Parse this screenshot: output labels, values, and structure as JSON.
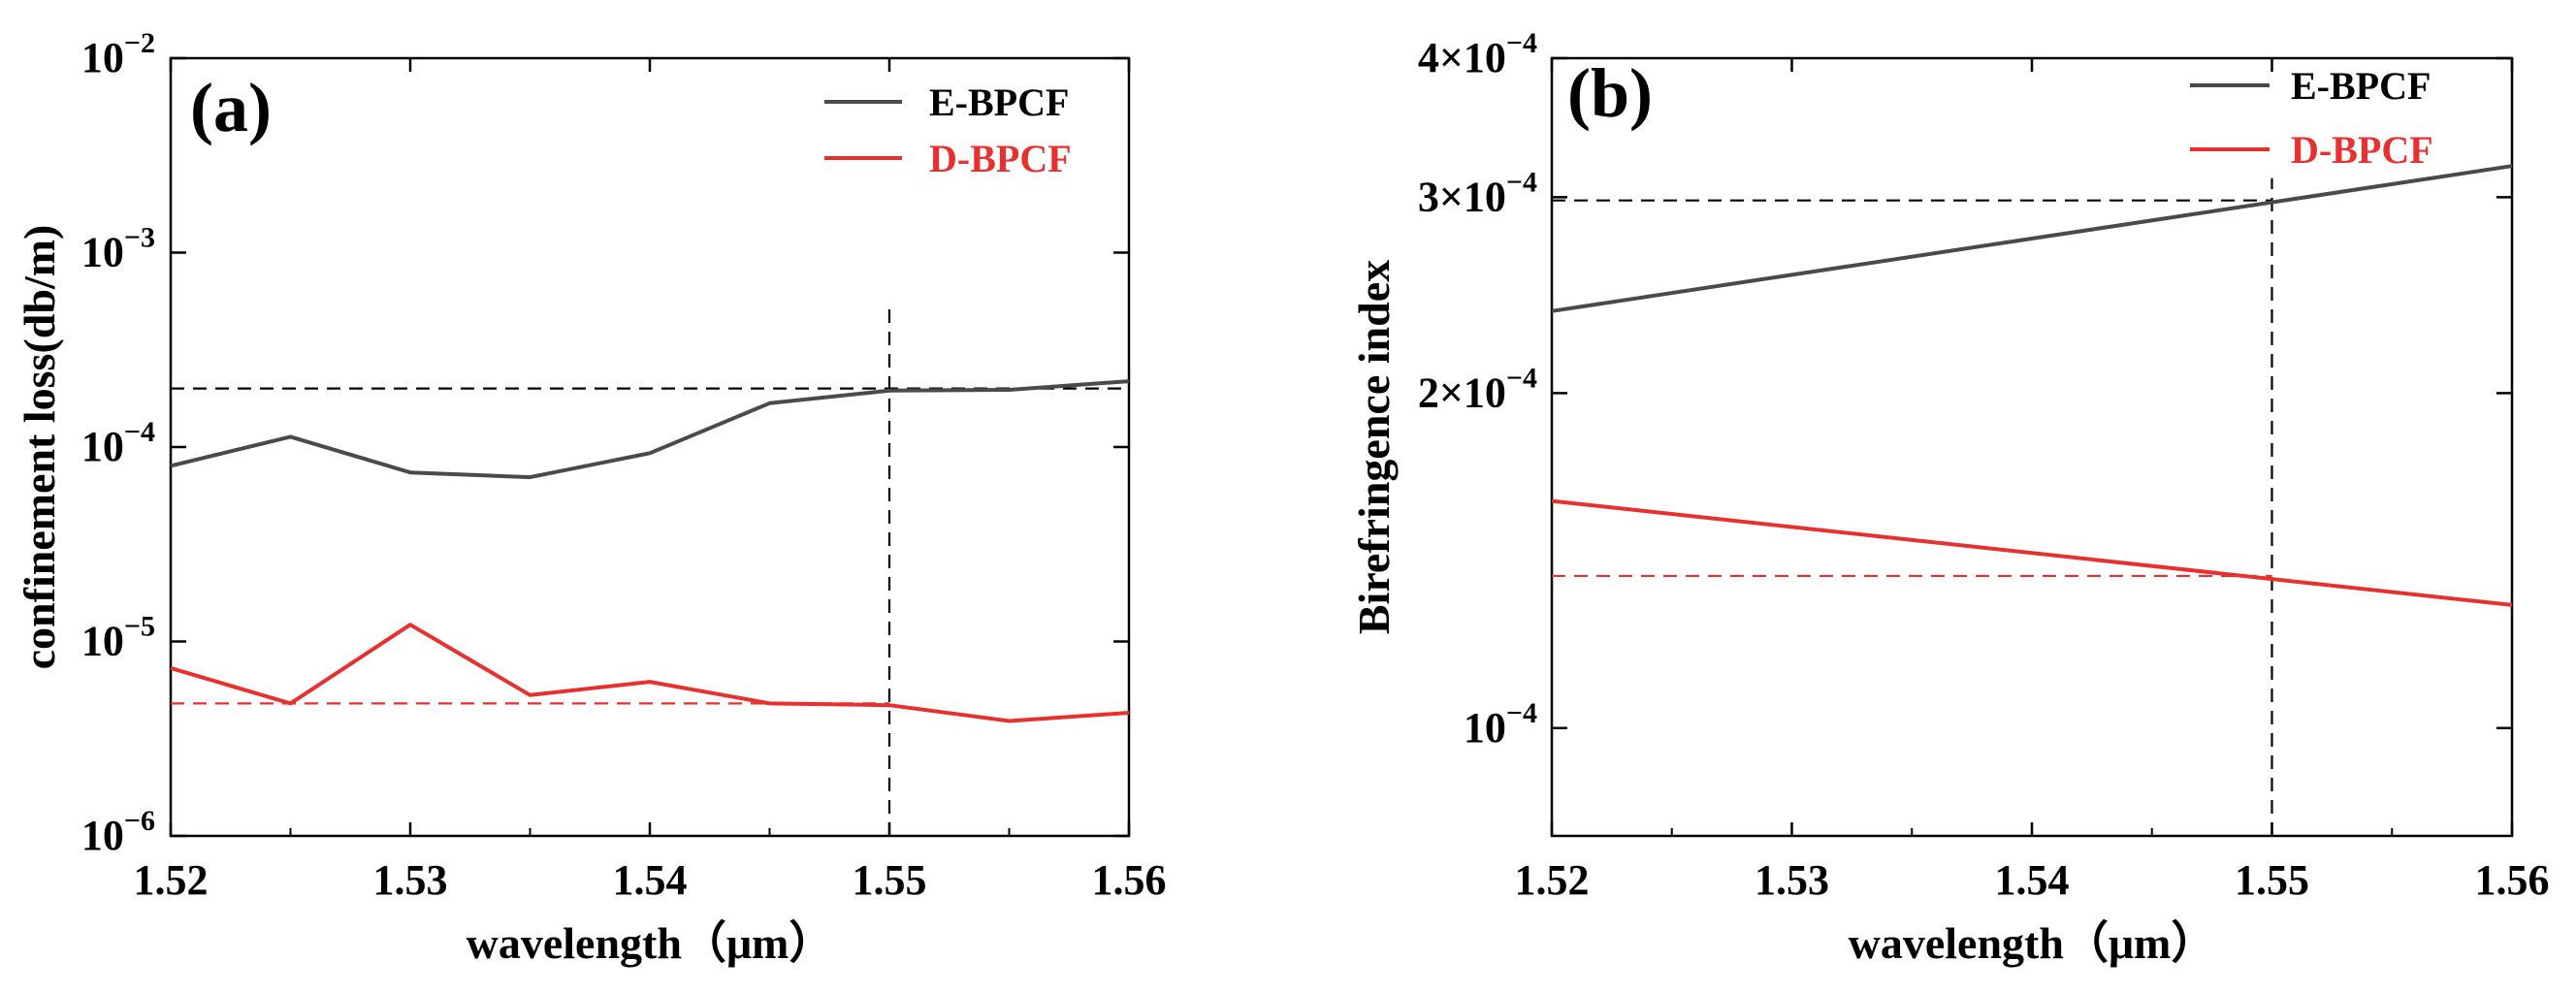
{
  "chart_data": [
    {
      "type": "line",
      "panel_label": "(a)",
      "title": "",
      "xlabel": "wavelength（μm）",
      "ylabel": "confinement loss(db/m)",
      "yscale": "log",
      "xlim": [
        1.52,
        1.56
      ],
      "ylim": [
        1e-06,
        0.01
      ],
      "xticks": [
        1.52,
        1.53,
        1.54,
        1.55,
        1.56
      ],
      "xtick_labels": [
        "1.52",
        "1.53",
        "1.54",
        "1.55",
        "1.56"
      ],
      "yticks": [
        1e-06,
        1e-05,
        0.0001,
        0.001,
        0.01
      ],
      "ytick_base": "10",
      "ytick_exponents": [
        "−6",
        "−5",
        "−4",
        "−3",
        "−2"
      ],
      "x": [
        1.52,
        1.525,
        1.53,
        1.535,
        1.54,
        1.545,
        1.55,
        1.555,
        1.56
      ],
      "series": [
        {
          "name": "E-BPCF",
          "color": "#4a4a4a",
          "values": [
            8e-05,
            0.000113,
            7.4e-05,
            7e-05,
            9.3e-05,
            0.000168,
            0.000195,
            0.000197,
            0.000218
          ]
        },
        {
          "name": "D-BPCF",
          "color": "#e8312f",
          "values": [
            7.3e-06,
            4.8e-06,
            1.22e-05,
            5.3e-06,
            6.2e-06,
            4.8e-06,
            4.7e-06,
            3.9e-06,
            4.3e-06
          ]
        }
      ],
      "reference_lines": [
        {
          "orientation": "horizontal",
          "value": 0.0002,
          "color": "#000000",
          "x_from": 1.52,
          "x_to": 1.56
        },
        {
          "orientation": "horizontal",
          "value": 4.8e-06,
          "color": "#e8312f",
          "x_from": 1.52,
          "x_to": 1.55
        },
        {
          "orientation": "vertical",
          "value": 1.55,
          "color": "#000000",
          "y_from": 1e-06,
          "y_to": 0.00055
        }
      ],
      "legend_position": "top-right",
      "grid": false
    },
    {
      "type": "line",
      "panel_label": "(b)",
      "title": "",
      "xlabel": "wavelength（μm）",
      "ylabel": "Birefringence index",
      "yscale": "log",
      "xlim": [
        1.52,
        1.56
      ],
      "ylim": [
        8e-05,
        0.0004
      ],
      "xticks": [
        1.52,
        1.53,
        1.54,
        1.55,
        1.56
      ],
      "xtick_labels": [
        "1.52",
        "1.53",
        "1.54",
        "1.55",
        "1.56"
      ],
      "yticks": [
        0.0001,
        0.0002,
        0.0003,
        0.0004
      ],
      "ytick_mantissas": [
        "",
        "2×",
        "3×",
        "4×"
      ],
      "ytick_base": "10",
      "ytick_exponents": [
        "−4",
        "−4",
        "−4",
        "−4"
      ],
      "x": [
        1.52,
        1.56
      ],
      "series": [
        {
          "name": "E-BPCF",
          "color": "#4a4a4a",
          "values": [
            0.000237,
            0.00032
          ]
        },
        {
          "name": "D-BPCF",
          "color": "#e8312f",
          "values": [
            0.00016,
            0.000129
          ]
        }
      ],
      "reference_lines": [
        {
          "orientation": "horizontal",
          "value": 0.000298,
          "color": "#000000",
          "x_from": 1.52,
          "x_to": 1.55
        },
        {
          "orientation": "horizontal",
          "value": 0.000137,
          "color": "#e8312f",
          "x_from": 1.52,
          "x_to": 1.55
        },
        {
          "orientation": "vertical",
          "value": 1.55,
          "color": "#000000",
          "y_from": 8e-05,
          "y_to": 0.000312
        }
      ],
      "legend_position": "top-right",
      "grid": false
    }
  ]
}
